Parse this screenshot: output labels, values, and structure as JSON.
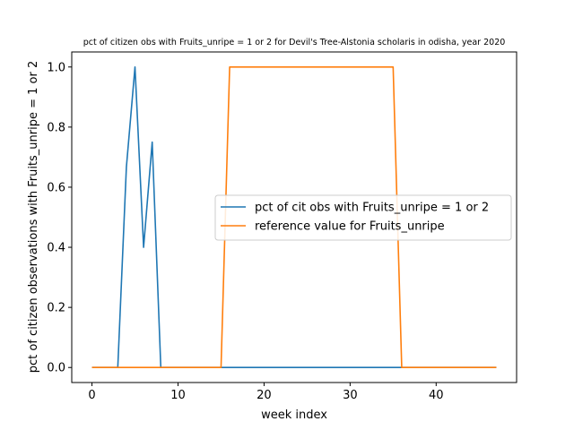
{
  "chart_data": {
    "type": "line",
    "title": "pct of citizen obs with Fruits_unripe = 1 or 2 for Devil's Tree-Alstonia scholaris in odisha, year 2020",
    "xlabel": "week index",
    "ylabel": "pct of citizen observations with Fruits_unripe = 1 or 2",
    "xlim": [
      -2.35,
      49.35
    ],
    "ylim": [
      -0.05,
      1.05
    ],
    "xticks": [
      0,
      10,
      20,
      30,
      40
    ],
    "xtick_labels": [
      "0",
      "10",
      "20",
      "30",
      "40"
    ],
    "yticks": [
      0.0,
      0.2,
      0.4,
      0.6,
      0.8,
      1.0
    ],
    "ytick_labels": [
      "0.0",
      "0.2",
      "0.4",
      "0.6",
      "0.8",
      "1.0"
    ],
    "grid": false,
    "legend_position": "center-right",
    "series": [
      {
        "name": "pct of cit obs with Fruits_unripe = 1 or 2",
        "color": "#1f77b4",
        "x": [
          0,
          1,
          2,
          3,
          4,
          5,
          6,
          7,
          8,
          9,
          10,
          11,
          12,
          13,
          14,
          15,
          16,
          17,
          18,
          19,
          20,
          21,
          22,
          23,
          24,
          25,
          26,
          27,
          28,
          29,
          30,
          31,
          32,
          33,
          34,
          35,
          36,
          37,
          38,
          39,
          40,
          41,
          42,
          43,
          44,
          45,
          46,
          47
        ],
        "y": [
          0,
          0,
          0,
          0,
          0.6667,
          1.0,
          0.4,
          0.75,
          0,
          0,
          0,
          0,
          0,
          0,
          0,
          0,
          0,
          0,
          0,
          0,
          0,
          0,
          0,
          0,
          0,
          0,
          0,
          0,
          0,
          0,
          0,
          0,
          0,
          0,
          0,
          0,
          0,
          0,
          0,
          0,
          0,
          0,
          0,
          0,
          0,
          0,
          0,
          0
        ]
      },
      {
        "name": "reference value for Fruits_unripe",
        "color": "#ff7f0e",
        "x": [
          0,
          1,
          2,
          3,
          4,
          5,
          6,
          7,
          8,
          9,
          10,
          11,
          12,
          13,
          14,
          15,
          16,
          17,
          18,
          19,
          20,
          21,
          22,
          23,
          24,
          25,
          26,
          27,
          28,
          29,
          30,
          31,
          32,
          33,
          34,
          35,
          36,
          37,
          38,
          39,
          40,
          41,
          42,
          43,
          44,
          45,
          46,
          47
        ],
        "y": [
          0,
          0,
          0,
          0,
          0,
          0,
          0,
          0,
          0,
          0,
          0,
          0,
          0,
          0,
          0,
          0,
          1,
          1,
          1,
          1,
          1,
          1,
          1,
          1,
          1,
          1,
          1,
          1,
          1,
          1,
          1,
          1,
          1,
          1,
          1,
          1,
          0,
          0,
          0,
          0,
          0,
          0,
          0,
          0,
          0,
          0,
          0,
          0
        ]
      }
    ]
  }
}
